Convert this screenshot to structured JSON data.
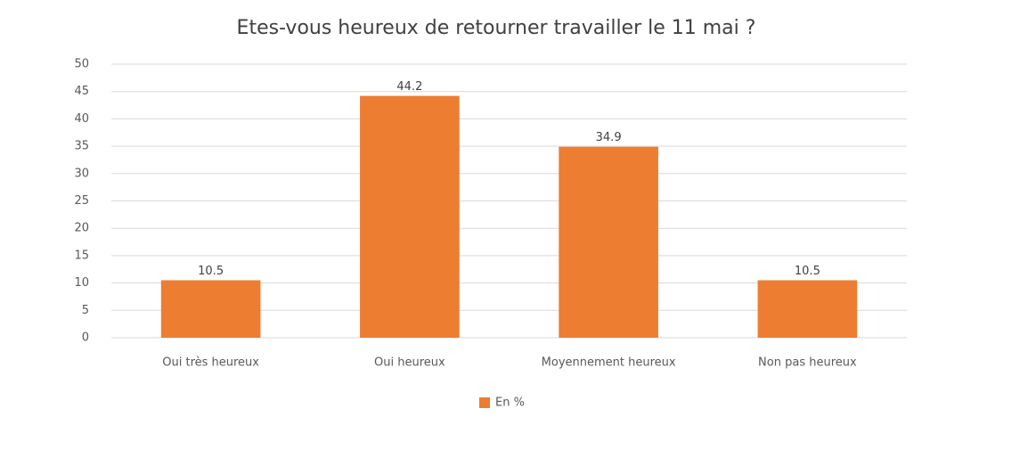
{
  "chart_data": {
    "type": "bar",
    "title": "Etes-vous heureux de retourner travailler le 11 mai ?",
    "categories": [
      "Oui très heureux",
      "Oui heureux",
      "Moyennement heureux",
      "Non pas heureux"
    ],
    "series": [
      {
        "name": "En %",
        "color": "#ed7d31",
        "values": [
          10.5,
          44.2,
          34.9,
          10.5
        ]
      }
    ],
    "ylim": [
      0,
      50
    ],
    "yticks": [
      0,
      5,
      10,
      15,
      20,
      25,
      30,
      35,
      40,
      45,
      50
    ],
    "grid": true,
    "legend": "bottom"
  }
}
